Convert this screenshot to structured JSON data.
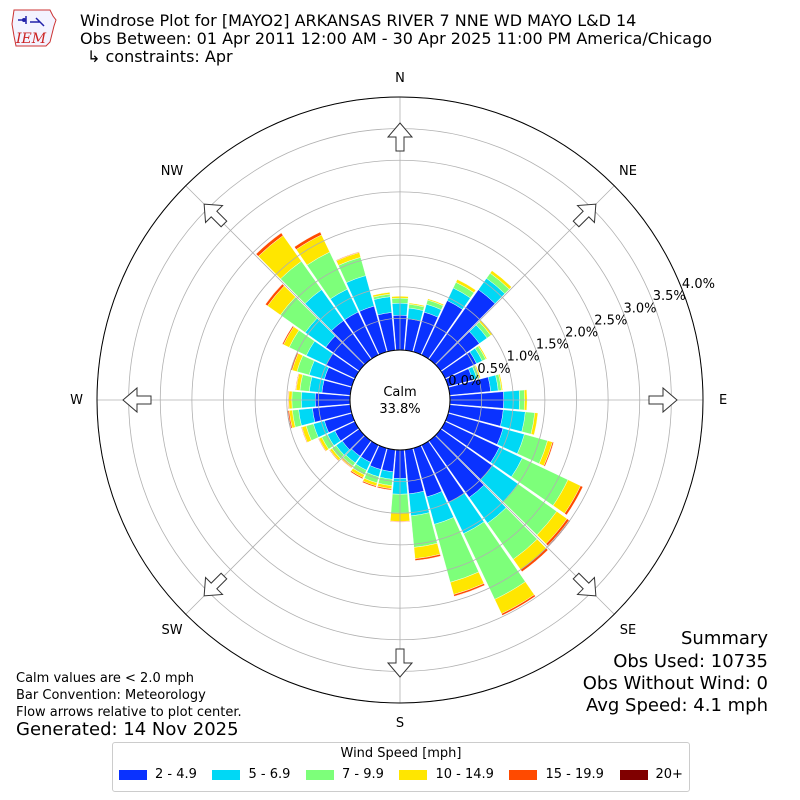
{
  "header": {
    "title": "Windrose Plot for [MAYO2] ARKANSAS RIVER 7 NNE WD MAYO L&D 14",
    "subtitle": "Obs Between: 01 Apr 2011 12:00 AM - 30 Apr 2025 11:00 PM America/Chicago",
    "constraints": "↳ constraints: Apr",
    "logo_text": "IEM"
  },
  "notes": {
    "calm_def": "Calm values are < 2.0 mph",
    "bar_convention": "Bar Convention: Meteorology",
    "flow_arrows": "Flow arrows relative to plot center.",
    "generated": "Generated: 14 Nov 2025"
  },
  "summary": {
    "title": "Summary",
    "obs_used": "Obs Used: 10735",
    "obs_without_wind": "Obs Without Wind: 0",
    "avg_speed": "Avg Speed: 4.1 mph"
  },
  "chart_data": {
    "type": "windrose",
    "calm_label": "Calm",
    "calm_value": "33.8%",
    "directions": [
      "N",
      "NE",
      "E",
      "SE",
      "S",
      "SW",
      "W",
      "NW"
    ],
    "radial_ticks": [
      "0.0%",
      "0.5%",
      "1.0%",
      "1.5%",
      "2.0%",
      "2.5%",
      "3.0%",
      "3.5%",
      "4.0%"
    ],
    "rmax": 4.0,
    "legend_title": "Wind Speed [mph]",
    "bins": [
      {
        "label": "2 - 4.9",
        "color": "#0a32ff"
      },
      {
        "label": "5 - 6.9",
        "color": "#00d8f5"
      },
      {
        "label": "7 - 9.9",
        "color": "#7dff7a"
      },
      {
        "label": "10 - 14.9",
        "color": "#ffe600"
      },
      {
        "label": "15 - 19.9",
        "color": "#ff4a00"
      },
      {
        "label": "20+",
        "color": "#800000"
      }
    ],
    "sectors": [
      {
        "dir": 0,
        "values": [
          0.55,
          0.19,
          0.08,
          0.03,
          0,
          0
        ]
      },
      {
        "dir": 10,
        "values": [
          0.5,
          0.17,
          0.06,
          0.02,
          0,
          0
        ]
      },
      {
        "dir": 20,
        "values": [
          0.65,
          0.13,
          0.07,
          0.02,
          0,
          0
        ]
      },
      {
        "dir": 30,
        "values": [
          0.95,
          0.22,
          0.1,
          0.05,
          0,
          0
        ]
      },
      {
        "dir": 40,
        "values": [
          1.35,
          0.22,
          0.1,
          0.05,
          0,
          0
        ]
      },
      {
        "dir": 50,
        "values": [
          0.75,
          0.15,
          0.07,
          0.03,
          0,
          0
        ]
      },
      {
        "dir": 60,
        "values": [
          0.55,
          0.1,
          0.06,
          0.02,
          0,
          0
        ]
      },
      {
        "dir": 70,
        "values": [
          0.4,
          0.07,
          0.04,
          0.02,
          0,
          0
        ]
      },
      {
        "dir": 80,
        "values": [
          0.65,
          0.12,
          0.05,
          0.02,
          0,
          0
        ]
      },
      {
        "dir": 90,
        "values": [
          0.85,
          0.25,
          0.08,
          0.04,
          0,
          0
        ]
      },
      {
        "dir": 100,
        "values": [
          0.85,
          0.35,
          0.15,
          0.05,
          0,
          0
        ]
      },
      {
        "dir": 110,
        "values": [
          0.9,
          0.35,
          0.38,
          0.08,
          0.02,
          0
        ]
      },
      {
        "dir": 120,
        "values": [
          0.95,
          0.4,
          0.8,
          0.22,
          0.04,
          0
        ]
      },
      {
        "dir": 130,
        "values": [
          1.0,
          0.5,
          0.75,
          0.2,
          0.04,
          0.02
        ]
      },
      {
        "dir": 140,
        "values": [
          1.1,
          0.5,
          0.7,
          0.2,
          0.04,
          0
        ]
      },
      {
        "dir": 150,
        "values": [
          1.0,
          0.55,
          1.15,
          0.25,
          0.03,
          0
        ]
      },
      {
        "dir": 160,
        "values": [
          0.8,
          0.45,
          0.95,
          0.2,
          0.03,
          0
        ]
      },
      {
        "dir": 170,
        "values": [
          0.7,
          0.35,
          0.5,
          0.18,
          0.03,
          0
        ]
      },
      {
        "dir": 180,
        "values": [
          0.45,
          0.25,
          0.3,
          0.13,
          0.01,
          0
        ]
      },
      {
        "dir": 190,
        "values": [
          0.35,
          0.12,
          0.1,
          0.05,
          0.02,
          0
        ]
      },
      {
        "dir": 200,
        "values": [
          0.35,
          0.12,
          0.1,
          0.05,
          0.02,
          0
        ]
      },
      {
        "dir": 210,
        "values": [
          0.3,
          0.14,
          0.08,
          0.05,
          0.02,
          0
        ]
      },
      {
        "dir": 220,
        "values": [
          0.3,
          0.13,
          0.06,
          0.03,
          0.01,
          0
        ]
      },
      {
        "dir": 230,
        "values": [
          0.33,
          0.12,
          0.08,
          0.04,
          0.01,
          0
        ]
      },
      {
        "dir": 240,
        "values": [
          0.35,
          0.13,
          0.1,
          0.05,
          0.01,
          0
        ]
      },
      {
        "dir": 250,
        "values": [
          0.45,
          0.18,
          0.12,
          0.07,
          0.01,
          0
        ]
      },
      {
        "dir": 260,
        "values": [
          0.6,
          0.22,
          0.1,
          0.05,
          0.02,
          0.01
        ]
      },
      {
        "dir": 270,
        "values": [
          0.55,
          0.22,
          0.15,
          0.05,
          0.01,
          0
        ]
      },
      {
        "dir": 280,
        "values": [
          0.45,
          0.2,
          0.15,
          0.06,
          0.01,
          0
        ]
      },
      {
        "dir": 290,
        "values": [
          0.45,
          0.25,
          0.2,
          0.08,
          0.02,
          0
        ]
      },
      {
        "dir": 300,
        "values": [
          0.5,
          0.35,
          0.3,
          0.1,
          0.02,
          0
        ]
      },
      {
        "dir": 310,
        "values": [
          0.65,
          0.4,
          0.48,
          0.25,
          0.04,
          0
        ]
      },
      {
        "dir": 320,
        "values": [
          0.75,
          0.6,
          0.55,
          0.5,
          0.05,
          0
        ]
      },
      {
        "dir": 330,
        "values": [
          0.75,
          0.4,
          0.65,
          0.3,
          0.05,
          0
        ]
      },
      {
        "dir": 340,
        "values": [
          0.75,
          0.5,
          0.3,
          0.08,
          0.01,
          0
        ]
      },
      {
        "dir": 350,
        "values": [
          0.6,
          0.25,
          0.04,
          0.03,
          0,
          0
        ]
      }
    ]
  }
}
